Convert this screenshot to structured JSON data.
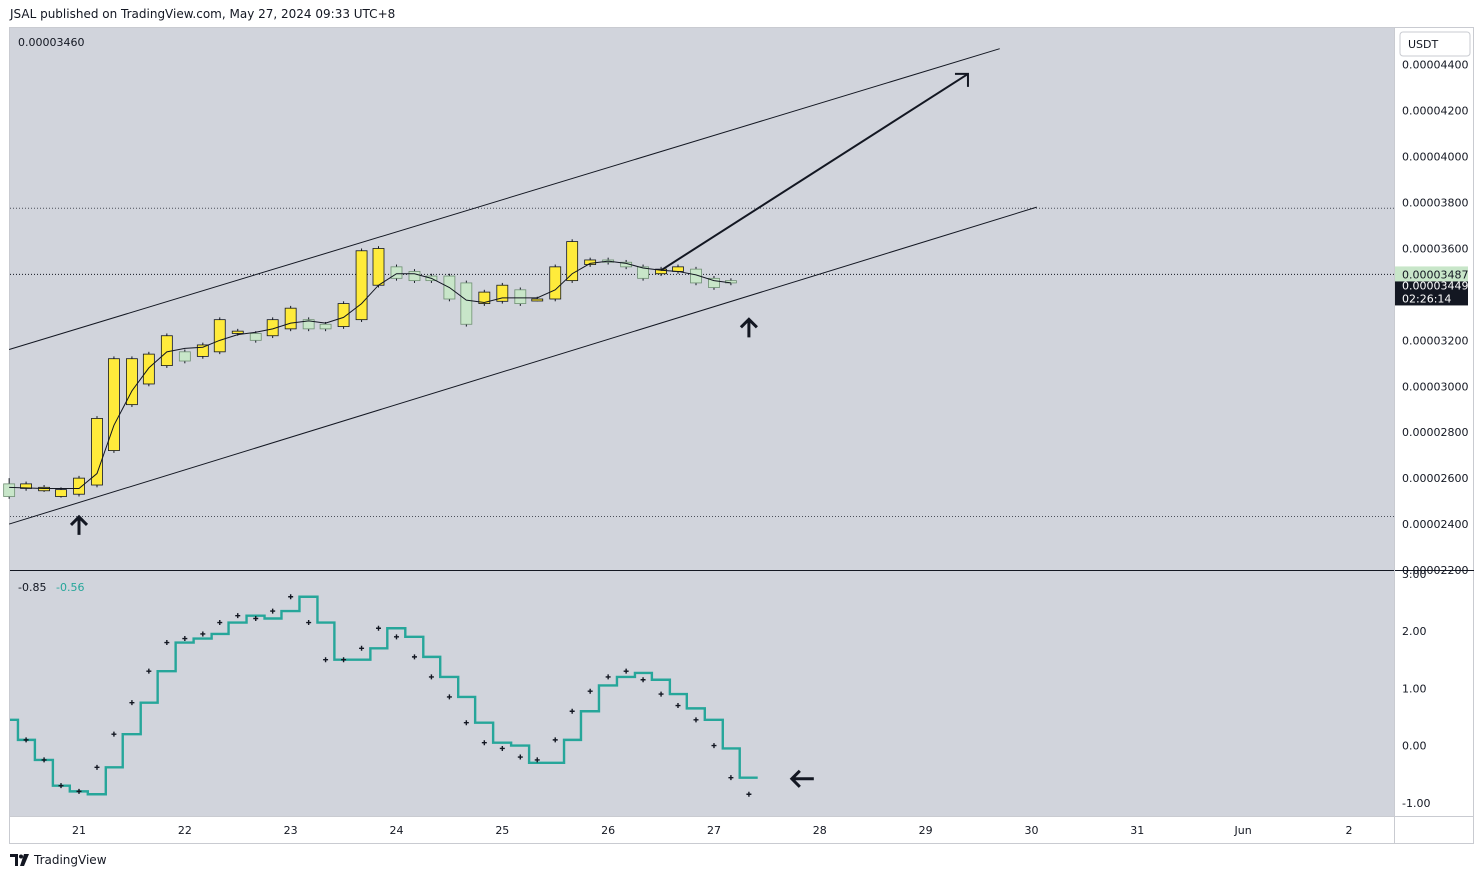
{
  "header": {
    "published": "JSAL published on TradingView.com, May 27, 2024 09:33 UTC+8"
  },
  "footer": {
    "brand": "TradingView"
  },
  "chart_data": [
    {
      "type": "candlestick",
      "top_left_label": "0.00003460",
      "currency": "USDT",
      "price_axis": {
        "range": [
          2.2e-05,
          4.56e-05
        ],
        "ticks": [
          "0.00004400",
          "0.00004200",
          "0.00004000",
          "0.00003800",
          "0.00003600",
          "0.00003200",
          "0.00003000",
          "0.00002800",
          "0.00002600",
          "0.00002400",
          "0.00002200"
        ],
        "tick_values": [
          4.4e-05,
          4.2e-05,
          4e-05,
          3.8e-05,
          3.6e-05,
          3.2e-05,
          3e-05,
          2.8e-05,
          2.6e-05,
          2.4e-05,
          2.2e-05
        ]
      },
      "last_price": {
        "label": "0.00003487",
        "value": 3.487e-05
      },
      "hidden_price": {
        "label": "0.00003449",
        "value": 3.449e-05
      },
      "countdown": "02:26:14",
      "dotted_levels": [
        3.775e-05,
        2.433e-05
      ],
      "x_axis": {
        "labels": [
          "21",
          "22",
          "23",
          "24",
          "25",
          "26",
          "27",
          "28",
          "29",
          "30",
          "31",
          "Jun",
          "2"
        ],
        "day_index": [
          0,
          1,
          2,
          3,
          4,
          5,
          6,
          7,
          8,
          9,
          10,
          11,
          12
        ]
      },
      "candles": [
        {
          "t": -0.66,
          "o": 2.575e-05,
          "c": 2.52e-05,
          "h": 2.6e-05,
          "l": 2.51e-05
        },
        {
          "t": -0.5,
          "o": 2.555e-05,
          "c": 2.575e-05,
          "h": 2.585e-05,
          "l": 2.545e-05
        },
        {
          "t": -0.33,
          "o": 2.545e-05,
          "c": 2.56e-05,
          "h": 2.57e-05,
          "l": 2.54e-05
        },
        {
          "t": -0.17,
          "o": 2.52e-05,
          "c": 2.55e-05,
          "h": 2.56e-05,
          "l": 2.515e-05
        },
        {
          "t": 0.0,
          "o": 2.53e-05,
          "c": 2.6e-05,
          "h": 2.61e-05,
          "l": 2.52e-05
        },
        {
          "t": 0.17,
          "o": 2.57e-05,
          "c": 2.86e-05,
          "h": 2.87e-05,
          "l": 2.56e-05
        },
        {
          "t": 0.33,
          "o": 2.72e-05,
          "c": 3.12e-05,
          "h": 3.13e-05,
          "l": 2.71e-05
        },
        {
          "t": 0.5,
          "o": 2.92e-05,
          "c": 3.12e-05,
          "h": 3.13e-05,
          "l": 2.91e-05
        },
        {
          "t": 0.66,
          "o": 3.01e-05,
          "c": 3.14e-05,
          "h": 3.15e-05,
          "l": 3e-05
        },
        {
          "t": 0.83,
          "o": 3.09e-05,
          "c": 3.22e-05,
          "h": 3.23e-05,
          "l": 3.08e-05
        },
        {
          "t": 1.0,
          "o": 3.15e-05,
          "c": 3.11e-05,
          "h": 3.16e-05,
          "l": 3.1e-05
        },
        {
          "t": 1.17,
          "o": 3.13e-05,
          "c": 3.18e-05,
          "h": 3.19e-05,
          "l": 3.12e-05
        },
        {
          "t": 1.33,
          "o": 3.15e-05,
          "c": 3.29e-05,
          "h": 3.3e-05,
          "l": 3.14e-05
        },
        {
          "t": 1.5,
          "o": 3.23e-05,
          "c": 3.24e-05,
          "h": 3.25e-05,
          "l": 3.22e-05
        },
        {
          "t": 1.67,
          "o": 3.23e-05,
          "c": 3.2e-05,
          "h": 3.24e-05,
          "l": 3.19e-05
        },
        {
          "t": 1.83,
          "o": 3.22e-05,
          "c": 3.29e-05,
          "h": 3.3e-05,
          "l": 3.21e-05
        },
        {
          "t": 2.0,
          "o": 3.25e-05,
          "c": 3.34e-05,
          "h": 3.35e-05,
          "l": 3.24e-05
        },
        {
          "t": 2.17,
          "o": 3.29e-05,
          "c": 3.25e-05,
          "h": 3.3e-05,
          "l": 3.24e-05
        },
        {
          "t": 2.33,
          "o": 3.27e-05,
          "c": 3.25e-05,
          "h": 3.28e-05,
          "l": 3.24e-05
        },
        {
          "t": 2.5,
          "o": 3.26e-05,
          "c": 3.36e-05,
          "h": 3.37e-05,
          "l": 3.25e-05
        },
        {
          "t": 2.67,
          "o": 3.29e-05,
          "c": 3.59e-05,
          "h": 3.6e-05,
          "l": 3.28e-05
        },
        {
          "t": 2.83,
          "o": 3.44e-05,
          "c": 3.6e-05,
          "h": 3.61e-05,
          "l": 3.43e-05
        },
        {
          "t": 3.0,
          "o": 3.52e-05,
          "c": 3.47e-05,
          "h": 3.53e-05,
          "l": 3.46e-05
        },
        {
          "t": 3.17,
          "o": 3.5e-05,
          "c": 3.46e-05,
          "h": 3.51e-05,
          "l": 3.45e-05
        },
        {
          "t": 3.33,
          "o": 3.48e-05,
          "c": 3.46e-05,
          "h": 3.49e-05,
          "l": 3.45e-05
        },
        {
          "t": 3.5,
          "o": 3.48e-05,
          "c": 3.38e-05,
          "h": 3.49e-05,
          "l": 3.37e-05
        },
        {
          "t": 3.66,
          "o": 3.45e-05,
          "c": 3.27e-05,
          "h": 3.46e-05,
          "l": 3.26e-05
        },
        {
          "t": 3.83,
          "o": 3.36e-05,
          "c": 3.41e-05,
          "h": 3.42e-05,
          "l": 3.35e-05
        },
        {
          "t": 4.0,
          "o": 3.37e-05,
          "c": 3.44e-05,
          "h": 3.45e-05,
          "l": 3.36e-05
        },
        {
          "t": 4.17,
          "o": 3.42e-05,
          "c": 3.36e-05,
          "h": 3.43e-05,
          "l": 3.35e-05
        },
        {
          "t": 4.33,
          "o": 3.38e-05,
          "c": 3.38e-05,
          "h": 3.39e-05,
          "l": 3.37e-05
        },
        {
          "t": 4.5,
          "o": 3.38e-05,
          "c": 3.52e-05,
          "h": 3.53e-05,
          "l": 3.37e-05
        },
        {
          "t": 4.66,
          "o": 3.46e-05,
          "c": 3.63e-05,
          "h": 3.64e-05,
          "l": 3.45e-05
        },
        {
          "t": 4.83,
          "o": 3.53e-05,
          "c": 3.55e-05,
          "h": 3.56e-05,
          "l": 3.52e-05
        },
        {
          "t": 5.0,
          "o": 3.55e-05,
          "c": 3.54e-05,
          "h": 3.56e-05,
          "l": 3.53e-05
        },
        {
          "t": 5.17,
          "o": 3.54e-05,
          "c": 3.52e-05,
          "h": 3.55e-05,
          "l": 3.51e-05
        },
        {
          "t": 5.33,
          "o": 3.52e-05,
          "c": 3.47e-05,
          "h": 3.53e-05,
          "l": 3.46e-05
        },
        {
          "t": 5.5,
          "o": 3.49e-05,
          "c": 3.51e-05,
          "h": 3.52e-05,
          "l": 3.48e-05
        },
        {
          "t": 5.66,
          "o": 3.5e-05,
          "c": 3.52e-05,
          "h": 3.53e-05,
          "l": 3.49e-05
        },
        {
          "t": 5.83,
          "o": 3.51e-05,
          "c": 3.45e-05,
          "h": 3.52e-05,
          "l": 3.44e-05
        },
        {
          "t": 6.0,
          "o": 3.47e-05,
          "c": 3.43e-05,
          "h": 3.48e-05,
          "l": 3.42e-05
        },
        {
          "t": 6.16,
          "o": 3.46e-05,
          "c": 3.45e-05,
          "h": 3.47e-05,
          "l": 3.44e-05
        }
      ],
      "ma_line": [
        [
          -0.66,
          2.56e-05
        ],
        [
          -0.33,
          2.555e-05
        ],
        [
          0.0,
          2.555e-05
        ],
        [
          0.17,
          2.62e-05
        ],
        [
          0.33,
          2.83e-05
        ],
        [
          0.5,
          2.98e-05
        ],
        [
          0.66,
          3.08e-05
        ],
        [
          0.83,
          3.15e-05
        ],
        [
          1.0,
          3.165e-05
        ],
        [
          1.17,
          3.17e-05
        ],
        [
          1.33,
          3.2e-05
        ],
        [
          1.5,
          3.225e-05
        ],
        [
          1.67,
          3.235e-05
        ],
        [
          1.83,
          3.25e-05
        ],
        [
          2.0,
          3.275e-05
        ],
        [
          2.17,
          3.285e-05
        ],
        [
          2.33,
          3.275e-05
        ],
        [
          2.5,
          3.3e-05
        ],
        [
          2.67,
          3.36e-05
        ],
        [
          2.83,
          3.44e-05
        ],
        [
          3.0,
          3.49e-05
        ],
        [
          3.17,
          3.49e-05
        ],
        [
          3.33,
          3.47e-05
        ],
        [
          3.5,
          3.43e-05
        ],
        [
          3.66,
          3.375e-05
        ],
        [
          3.83,
          3.365e-05
        ],
        [
          4.0,
          3.385e-05
        ],
        [
          4.17,
          3.385e-05
        ],
        [
          4.33,
          3.385e-05
        ],
        [
          4.5,
          3.42e-05
        ],
        [
          4.66,
          3.49e-05
        ],
        [
          4.83,
          3.535e-05
        ],
        [
          5.0,
          3.545e-05
        ],
        [
          5.17,
          3.535e-05
        ],
        [
          5.33,
          3.515e-05
        ],
        [
          5.5,
          3.505e-05
        ],
        [
          5.66,
          3.5e-05
        ],
        [
          5.83,
          3.485e-05
        ],
        [
          6.0,
          3.46e-05
        ],
        [
          6.16,
          3.45e-05
        ]
      ],
      "trend_lines": [
        {
          "name": "upper-channel",
          "from": [
            -0.66,
            3.16e-05
          ],
          "to": [
            8.7,
            4.47e-05
          ]
        },
        {
          "name": "lower-channel",
          "from": [
            -0.66,
            2.4e-05
          ],
          "to": [
            9.05,
            3.78e-05
          ]
        }
      ],
      "arrow_projection": {
        "from": [
          5.5,
          3.505e-05
        ],
        "to": [
          8.4,
          4.36e-05
        ]
      },
      "up_arrows": [
        [
          0.0,
          2.44e-05
        ],
        [
          6.33,
          3.3e-05
        ]
      ],
      "colors": {
        "bg": "#d1d4dc",
        "up": "#ffeb3b",
        "down": "#c8e6c9",
        "line": "#131722"
      }
    },
    {
      "type": "line",
      "legend_values": [
        "-0.85",
        "-0.56"
      ],
      "y_axis": {
        "range": [
          -1.23,
          3.05
        ],
        "ticks": [
          "3.00",
          "2.00",
          "1.00",
          "0.00",
          "-1.00"
        ],
        "tick_values": [
          3,
          2,
          1,
          0,
          -1
        ]
      },
      "step_series": [
        [
          -0.66,
          0.45
        ],
        [
          -0.5,
          0.1
        ],
        [
          -0.33,
          -0.25
        ],
        [
          -0.17,
          -0.7
        ],
        [
          0.0,
          -0.8
        ],
        [
          0.17,
          -0.85
        ],
        [
          0.33,
          -0.38
        ],
        [
          0.5,
          0.2
        ],
        [
          0.66,
          0.75
        ],
        [
          0.83,
          1.3
        ],
        [
          1.0,
          1.8
        ],
        [
          1.17,
          1.87
        ],
        [
          1.33,
          1.95
        ],
        [
          1.5,
          2.15
        ],
        [
          1.67,
          2.27
        ],
        [
          1.83,
          2.22
        ],
        [
          2.0,
          2.35
        ],
        [
          2.17,
          2.6
        ],
        [
          2.33,
          2.15
        ],
        [
          2.5,
          1.5
        ],
        [
          2.67,
          1.5
        ],
        [
          2.83,
          1.7
        ],
        [
          3.0,
          2.05
        ],
        [
          3.17,
          1.9
        ],
        [
          3.33,
          1.55
        ],
        [
          3.5,
          1.2
        ],
        [
          3.66,
          0.85
        ],
        [
          3.83,
          0.4
        ],
        [
          4.0,
          0.05
        ],
        [
          4.17,
          0.0
        ],
        [
          4.33,
          -0.3
        ],
        [
          4.5,
          -0.3
        ],
        [
          4.66,
          0.1
        ],
        [
          4.83,
          0.6
        ],
        [
          5.0,
          1.05
        ],
        [
          5.17,
          1.2
        ],
        [
          5.33,
          1.27
        ],
        [
          5.5,
          1.15
        ],
        [
          5.66,
          0.9
        ],
        [
          5.83,
          0.65
        ],
        [
          6.0,
          0.45
        ],
        [
          6.16,
          -0.05
        ],
        [
          6.33,
          -0.56
        ]
      ],
      "dots": [
        [
          -0.5,
          0.1
        ],
        [
          -0.33,
          -0.25
        ],
        [
          -0.17,
          -0.7
        ],
        [
          0.0,
          -0.8
        ],
        [
          0.17,
          -0.38
        ],
        [
          0.33,
          0.2
        ],
        [
          0.5,
          0.75
        ],
        [
          0.66,
          1.3
        ],
        [
          0.83,
          1.8
        ],
        [
          1.0,
          1.87
        ],
        [
          1.17,
          1.95
        ],
        [
          1.33,
          2.15
        ],
        [
          1.5,
          2.27
        ],
        [
          1.67,
          2.22
        ],
        [
          1.83,
          2.35
        ],
        [
          2.0,
          2.6
        ],
        [
          2.17,
          2.15
        ],
        [
          2.33,
          1.5
        ],
        [
          2.5,
          1.5
        ],
        [
          2.67,
          1.7
        ],
        [
          2.83,
          2.05
        ],
        [
          3.0,
          1.9
        ],
        [
          3.17,
          1.55
        ],
        [
          3.33,
          1.2
        ],
        [
          3.5,
          0.85
        ],
        [
          3.66,
          0.4
        ],
        [
          3.83,
          0.05
        ],
        [
          4.0,
          -0.05
        ],
        [
          4.17,
          -0.2
        ],
        [
          4.33,
          -0.25
        ],
        [
          4.5,
          0.1
        ],
        [
          4.66,
          0.6
        ],
        [
          4.83,
          0.95
        ],
        [
          5.0,
          1.2
        ],
        [
          5.17,
          1.3
        ],
        [
          5.33,
          1.15
        ],
        [
          5.5,
          0.9
        ],
        [
          5.66,
          0.7
        ],
        [
          5.83,
          0.45
        ],
        [
          6.0,
          0.0
        ],
        [
          6.16,
          -0.56
        ],
        [
          6.33,
          -0.85
        ]
      ],
      "left_arrow_at": [
        6.83,
        -0.58
      ],
      "colors": {
        "line": "#26a69a",
        "dots": "#131722"
      }
    }
  ]
}
